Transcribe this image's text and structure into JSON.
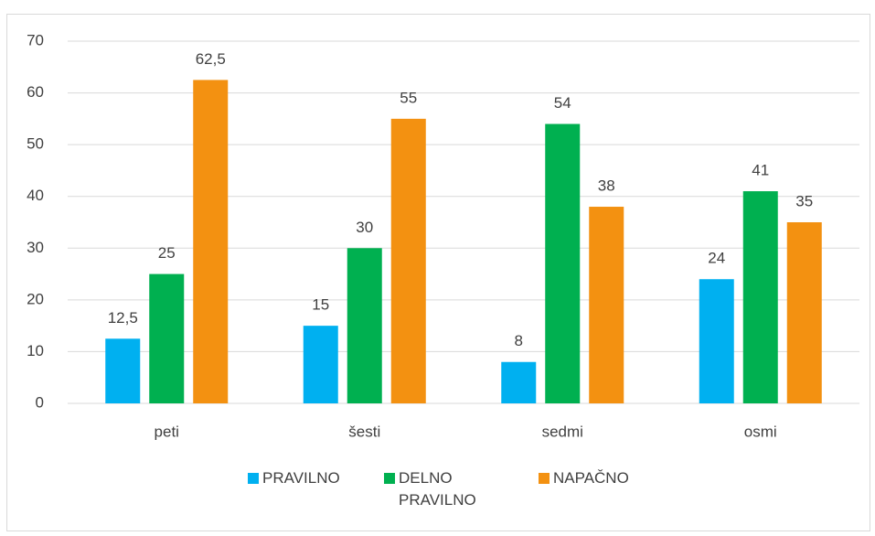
{
  "chart_data": {
    "type": "bar",
    "categories": [
      "peti",
      "šesti",
      "sedmi",
      "osmi"
    ],
    "series": [
      {
        "name": "PRAVILNO",
        "color": "#00b0f0",
        "values": [
          12.5,
          15,
          8,
          24
        ],
        "value_labels": [
          "12,5",
          "15",
          "8",
          "24"
        ]
      },
      {
        "name": "DELNO PRAVILNO",
        "color": "#00b050",
        "values": [
          25,
          30,
          54,
          41
        ],
        "value_labels": [
          "25",
          "30",
          "54",
          "41"
        ]
      },
      {
        "name": "NAPAČNO",
        "color": "#f39111",
        "values": [
          62.5,
          55,
          38,
          35
        ],
        "value_labels": [
          "62,5",
          "55",
          "38",
          "35"
        ]
      }
    ],
    "ylim": [
      0,
      70
    ],
    "yticks": [
      0,
      10,
      20,
      30,
      40,
      50,
      60,
      70
    ],
    "grid": true,
    "legend": "bottom"
  }
}
